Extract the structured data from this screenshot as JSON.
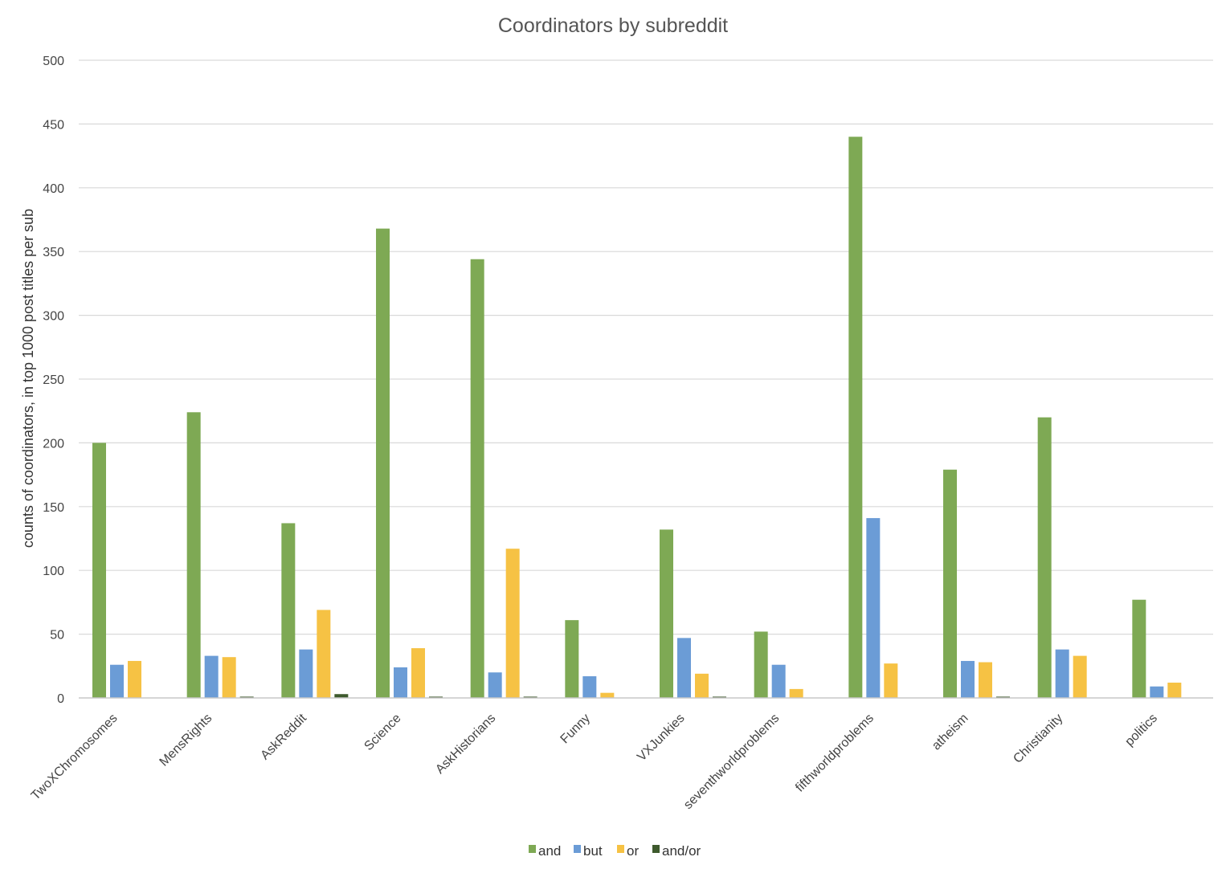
{
  "chart_data": {
    "type": "bar",
    "title": "Coordinators by subreddit",
    "xlabel": "",
    "ylabel": "counts of coordinators, in top 1000 post titles per sub",
    "ylim": [
      0,
      500
    ],
    "yticks": [
      0,
      50,
      100,
      150,
      200,
      250,
      300,
      350,
      400,
      450,
      500
    ],
    "grid": true,
    "legend_position": "bottom",
    "categories": [
      "TwoXChromosomes",
      "MensRights",
      "AskReddit",
      "Science",
      "AskHistorians",
      "Funny",
      "VXJunkies",
      "seventhworldproblems",
      "fifthworldproblems",
      "atheism",
      "Christianity",
      "politics"
    ],
    "series": [
      {
        "name": "and",
        "color": "#7ea954",
        "values": [
          200,
          224,
          137,
          368,
          344,
          61,
          132,
          52,
          440,
          179,
          220,
          77
        ]
      },
      {
        "name": "but",
        "color": "#6b9cd6",
        "values": [
          26,
          33,
          38,
          24,
          20,
          17,
          47,
          26,
          141,
          29,
          38,
          9
        ]
      },
      {
        "name": "or",
        "color": "#f6c244",
        "values": [
          29,
          32,
          69,
          39,
          117,
          4,
          19,
          7,
          27,
          28,
          33,
          12
        ]
      },
      {
        "name": "and/or",
        "color": "#3e5a2d",
        "values": [
          0,
          1,
          3,
          1,
          1,
          0,
          1,
          0,
          0,
          1,
          0,
          0
        ]
      }
    ]
  }
}
